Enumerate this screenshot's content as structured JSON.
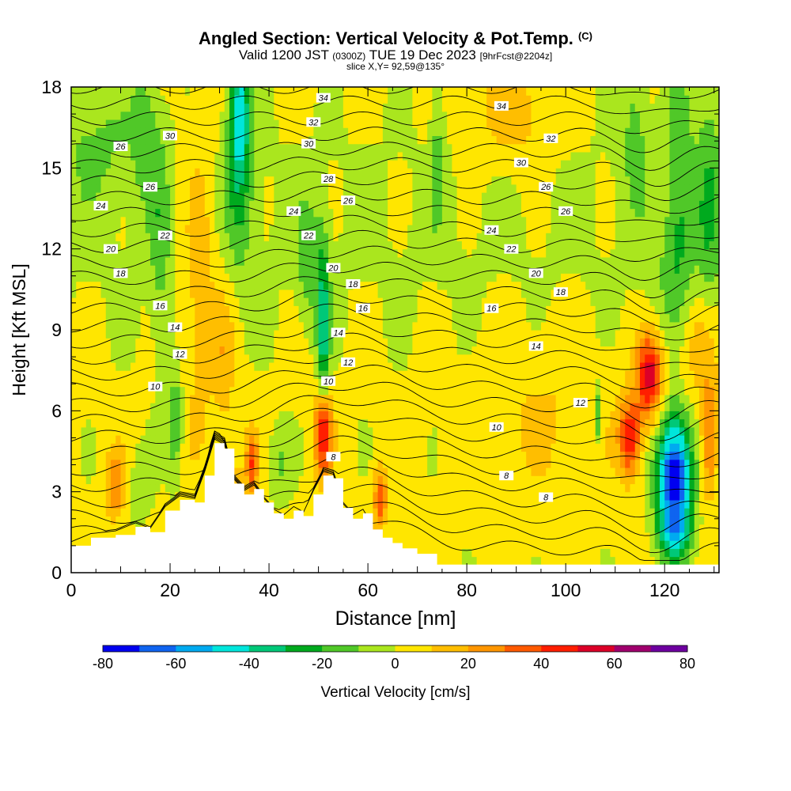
{
  "header": {
    "title": "Angled Section: Vertical Velocity & Pot.Temp.",
    "copyright": "(C)",
    "valid_prefix": "Valid 1200 JST",
    "valid_utc": "(0300Z)",
    "valid_date": "TUE 19 Dec 2023",
    "forecast": "[9hrFcst@2204z]",
    "slice": "slice X,Y= 92,59@135°"
  },
  "chart_data": {
    "type": "heatmap",
    "xlabel": "Distance [nm]",
    "ylabel": "Height [Kft MSL]",
    "xlim": [
      0,
      131
    ],
    "ylim": [
      0,
      18
    ],
    "x_ticks": [
      0,
      20,
      40,
      60,
      80,
      100,
      120
    ],
    "y_ticks": [
      0,
      3,
      6,
      9,
      12,
      15,
      18
    ],
    "colorbar": {
      "label": "Vertical Velocity [cm/s]",
      "ticks": [
        -80,
        -60,
        -40,
        -20,
        0,
        20,
        40,
        60,
        80
      ],
      "bins": [
        -80,
        -70,
        -60,
        -50,
        -40,
        -30,
        -20,
        -10,
        0,
        10,
        20,
        30,
        40,
        50,
        60,
        70,
        80
      ],
      "colors": [
        "#0000f0",
        "#0f64f0",
        "#00aaf0",
        "#00e6dc",
        "#00c878",
        "#00aa1e",
        "#50c828",
        "#aae61e",
        "#ffe600",
        "#ffbe00",
        "#ff9600",
        "#ff5a00",
        "#ff1e00",
        "#dc0028",
        "#a0006e",
        "#6e00a0"
      ]
    },
    "terrain": [
      [
        0,
        1.0
      ],
      [
        4,
        1.3
      ],
      [
        9,
        1.4
      ],
      [
        13,
        1.7
      ],
      [
        16,
        1.5
      ],
      [
        19,
        2.3
      ],
      [
        22,
        2.7
      ],
      [
        25,
        2.6
      ],
      [
        27,
        3.6
      ],
      [
        29,
        4.8
      ],
      [
        31,
        4.6
      ],
      [
        33,
        3.3
      ],
      [
        35,
        2.9
      ],
      [
        37,
        3.1
      ],
      [
        39,
        2.6
      ],
      [
        41,
        2.2
      ],
      [
        43,
        2.0
      ],
      [
        45,
        2.3
      ],
      [
        47,
        2.1
      ],
      [
        49,
        2.9
      ],
      [
        51,
        3.6
      ],
      [
        53,
        3.5
      ],
      [
        55,
        2.4
      ],
      [
        57,
        2.0
      ],
      [
        59,
        2.2
      ],
      [
        61,
        1.6
      ],
      [
        63,
        1.3
      ],
      [
        65,
        1.1
      ],
      [
        67,
        0.9
      ],
      [
        70,
        0.7
      ],
      [
        74,
        0.3
      ],
      [
        131,
        0.3
      ]
    ],
    "theta_labels": [
      {
        "v": "34",
        "x": 51,
        "y": 17.6
      },
      {
        "v": "34",
        "x": 87,
        "y": 17.3
      },
      {
        "v": "32",
        "x": 49,
        "y": 16.7
      },
      {
        "v": "32",
        "x": 97,
        "y": 16.1
      },
      {
        "v": "30",
        "x": 20,
        "y": 16.2
      },
      {
        "v": "30",
        "x": 48,
        "y": 15.9
      },
      {
        "v": "30",
        "x": 91,
        "y": 15.2
      },
      {
        "v": "26",
        "x": 10,
        "y": 15.8
      },
      {
        "v": "28",
        "x": 52,
        "y": 14.6
      },
      {
        "v": "26",
        "x": 16,
        "y": 14.3
      },
      {
        "v": "26",
        "x": 56,
        "y": 13.8
      },
      {
        "v": "26",
        "x": 96,
        "y": 14.3
      },
      {
        "v": "26",
        "x": 100,
        "y": 13.4
      },
      {
        "v": "24",
        "x": 6,
        "y": 13.6
      },
      {
        "v": "24",
        "x": 45,
        "y": 13.4
      },
      {
        "v": "24",
        "x": 85,
        "y": 12.7
      },
      {
        "v": "22",
        "x": 19,
        "y": 12.5
      },
      {
        "v": "22",
        "x": 48,
        "y": 12.5
      },
      {
        "v": "22",
        "x": 89,
        "y": 12.0
      },
      {
        "v": "20",
        "x": 8,
        "y": 12.0
      },
      {
        "v": "20",
        "x": 53,
        "y": 11.3
      },
      {
        "v": "20",
        "x": 94,
        "y": 11.1
      },
      {
        "v": "18",
        "x": 10,
        "y": 11.1
      },
      {
        "v": "18",
        "x": 57,
        "y": 10.7
      },
      {
        "v": "18",
        "x": 99,
        "y": 10.4
      },
      {
        "v": "16",
        "x": 18,
        "y": 9.9
      },
      {
        "v": "16",
        "x": 59,
        "y": 9.8
      },
      {
        "v": "16",
        "x": 85,
        "y": 9.8
      },
      {
        "v": "14",
        "x": 21,
        "y": 9.1
      },
      {
        "v": "14",
        "x": 54,
        "y": 8.9
      },
      {
        "v": "14",
        "x": 94,
        "y": 8.4
      },
      {
        "v": "12",
        "x": 22,
        "y": 8.1
      },
      {
        "v": "12",
        "x": 56,
        "y": 7.8
      },
      {
        "v": "12",
        "x": 103,
        "y": 6.3
      },
      {
        "v": "10",
        "x": 17,
        "y": 6.9
      },
      {
        "v": "10",
        "x": 52,
        "y": 7.1
      },
      {
        "v": "10",
        "x": 86,
        "y": 5.4
      },
      {
        "v": "8",
        "x": 53,
        "y": 4.3
      },
      {
        "v": "8",
        "x": 88,
        "y": 3.6
      },
      {
        "v": "8",
        "x": 96,
        "y": 2.8
      }
    ]
  }
}
